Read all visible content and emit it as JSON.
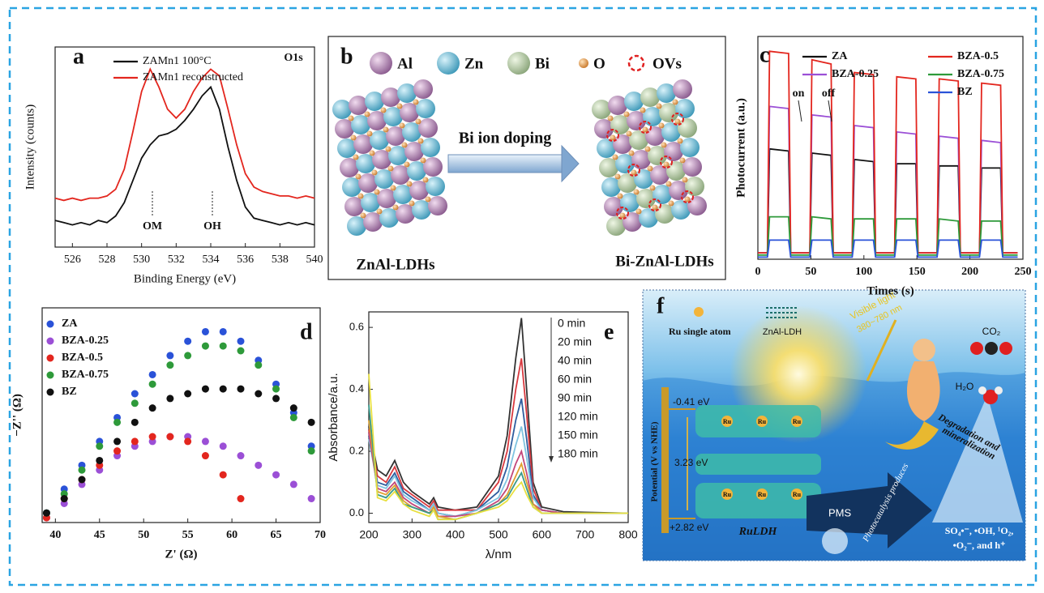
{
  "chart_data": [
    {
      "type": "line",
      "label": "a",
      "x_label": "Binding Energy (eV)",
      "y_label": "Intensity (counts)",
      "annotations": [
        "O1s",
        "OM",
        "OH"
      ],
      "legend": "upper left",
      "x": [
        525,
        525.5,
        526,
        526.5,
        527,
        527.5,
        528,
        528.5,
        529,
        529.5,
        530,
        530.5,
        531,
        531.5,
        532,
        532.5,
        533,
        533.5,
        534,
        534.5,
        535,
        535.5,
        536,
        536.5,
        537,
        537.5,
        538,
        538.5,
        539,
        539.5,
        540
      ],
      "xlim": [
        525,
        540
      ],
      "xticks": [
        526,
        528,
        530,
        532,
        534,
        536,
        538,
        540
      ],
      "ylim": [
        0,
        90
      ],
      "series": [
        {
          "name": "ZAMn1 100°C",
          "color": "#111111",
          "values": [
            12,
            11,
            10,
            11,
            10,
            12,
            11,
            14,
            20,
            30,
            40,
            46,
            50,
            51,
            53,
            57,
            62,
            68,
            72,
            62,
            45,
            30,
            18,
            13,
            12,
            11,
            10,
            11,
            10,
            11,
            10
          ]
        },
        {
          "name": "ZAMn1 reconstructed",
          "color": "#e3261e",
          "values": [
            22,
            21,
            22,
            21,
            22,
            22,
            23,
            26,
            35,
            52,
            70,
            80,
            72,
            62,
            58,
            62,
            70,
            76,
            80,
            77,
            62,
            46,
            33,
            27,
            25,
            24,
            23,
            23,
            22,
            23,
            22
          ]
        }
      ]
    },
    {
      "type": "line",
      "label": "c",
      "x_label": "Times (s)",
      "y_label": "Photocurrent (a.u.)",
      "annotations": [
        "on",
        "off"
      ],
      "legend": "upper center",
      "x": [
        0,
        9,
        11,
        29,
        31,
        49,
        51,
        69,
        71,
        89,
        91,
        109,
        111,
        129,
        131,
        149,
        151,
        169,
        171,
        189,
        191,
        209,
        211,
        229,
        231,
        245
      ],
      "xlim": [
        0,
        250
      ],
      "xticks": [
        0,
        50,
        100,
        150,
        200,
        250
      ],
      "ylim": [
        0,
        105
      ],
      "series": [
        {
          "name": "ZA",
          "color": "#111111",
          "values": [
            3,
            3,
            52,
            51,
            3,
            3,
            50,
            49,
            3,
            3,
            47,
            46,
            3,
            3,
            45,
            45,
            3,
            3,
            44,
            44,
            3,
            3,
            43,
            43,
            3,
            3
          ]
        },
        {
          "name": "BZA-0.25",
          "color": "#9b4fd6",
          "values": [
            3,
            3,
            72,
            71,
            3,
            3,
            68,
            67,
            3,
            3,
            63,
            62,
            3,
            3,
            60,
            59,
            3,
            3,
            58,
            57,
            3,
            3,
            56,
            55,
            3,
            3
          ]
        },
        {
          "name": "BZA-0.5",
          "color": "#e3261e",
          "values": [
            3,
            3,
            98,
            97,
            3,
            3,
            94,
            92,
            3,
            3,
            88,
            87,
            3,
            3,
            86,
            85,
            3,
            3,
            85,
            84,
            3,
            3,
            83,
            82,
            3,
            3
          ]
        },
        {
          "name": "BZA-0.75",
          "color": "#2e9a3a",
          "values": [
            2,
            2,
            20,
            20,
            2,
            2,
            20,
            19,
            2,
            2,
            19,
            19,
            2,
            2,
            19,
            19,
            2,
            2,
            19,
            18,
            2,
            2,
            18,
            18,
            2,
            2
          ]
        },
        {
          "name": "BZ",
          "color": "#2a52d8",
          "values": [
            1,
            1,
            9,
            9,
            1,
            1,
            9,
            9,
            1,
            1,
            9,
            9,
            1,
            1,
            9,
            9,
            1,
            1,
            9,
            9,
            1,
            1,
            9,
            9,
            1,
            1
          ]
        }
      ]
    },
    {
      "type": "scatter",
      "label": "d",
      "x_label": "Z' (Ω)",
      "y_label": "−Z'' (Ω)",
      "legend": "upper left",
      "xlim": [
        38.5,
        70
      ],
      "xticks": [
        40,
        45,
        50,
        55,
        60,
        65,
        70
      ],
      "ylim": [
        0,
        45
      ],
      "series": [
        {
          "name": "ZA",
          "color": "#2a52d8",
          "x": [
            39,
            41,
            43,
            45,
            47,
            49,
            51,
            53,
            55,
            57,
            59,
            61,
            63,
            65,
            67,
            69
          ],
          "values": [
            2,
            7,
            12,
            17,
            22,
            27,
            31,
            35,
            38,
            40,
            40,
            38,
            34,
            29,
            23,
            16
          ]
        },
        {
          "name": "BZA-0.25",
          "color": "#9b4fd6",
          "x": [
            39,
            41,
            43,
            45,
            47,
            49,
            51,
            53,
            55,
            57,
            59,
            61,
            63,
            65,
            67,
            69
          ],
          "values": [
            1,
            4,
            8,
            11,
            14,
            16,
            17,
            18,
            18,
            17,
            16,
            14,
            12,
            10,
            8,
            5
          ]
        },
        {
          "name": "BZA-0.5",
          "color": "#e3261e",
          "x": [
            39,
            41,
            43,
            45,
            47,
            49,
            51,
            53,
            55,
            57,
            59,
            61
          ],
          "values": [
            1,
            5,
            9,
            12,
            15,
            17,
            18,
            18,
            17,
            14,
            10,
            5
          ]
        },
        {
          "name": "BZA-0.75",
          "color": "#2e9a3a",
          "x": [
            39,
            41,
            43,
            45,
            47,
            49,
            51,
            53,
            55,
            57,
            59,
            61,
            63,
            65,
            67,
            69
          ],
          "values": [
            2,
            6,
            11,
            16,
            21,
            25,
            29,
            33,
            35,
            37,
            37,
            36,
            33,
            28,
            22,
            15
          ]
        },
        {
          "name": "BZ",
          "color": "#111111",
          "x": [
            39,
            41,
            43,
            45,
            47,
            49,
            51,
            53,
            55,
            57,
            59,
            61,
            63,
            65,
            67,
            69
          ],
          "values": [
            2,
            5,
            9,
            13,
            17,
            21,
            24,
            26,
            27,
            28,
            28,
            28,
            27,
            26,
            24,
            21
          ]
        }
      ]
    },
    {
      "type": "line",
      "label": "e",
      "x_label": "λ/nm",
      "y_label": "Absorbance/a.u.",
      "legend": "upper right",
      "x": [
        200,
        220,
        240,
        260,
        280,
        300,
        340,
        350,
        360,
        400,
        450,
        500,
        520,
        540,
        553,
        565,
        580,
        600,
        650,
        700,
        800
      ],
      "xlim": [
        200,
        800
      ],
      "xticks": [
        200,
        300,
        400,
        500,
        600,
        700,
        800
      ],
      "ylim": [
        -0.03,
        0.65
      ],
      "yticks": [
        {
          "value": 0,
          "label": "0.0"
        },
        0.2,
        0.4,
        0.6
      ],
      "series": [
        {
          "name": "0 min",
          "color": "#333333",
          "values": [
            0.28,
            0.14,
            0.12,
            0.17,
            0.1,
            0.07,
            0.03,
            0.05,
            0.02,
            0.01,
            0.02,
            0.12,
            0.25,
            0.5,
            0.63,
            0.4,
            0.1,
            0.02,
            0.005,
            0.003,
            0
          ]
        },
        {
          "name": "20 min",
          "color": "#d9393f",
          "values": [
            0.27,
            0.12,
            0.1,
            0.15,
            0.08,
            0.06,
            0.02,
            0.04,
            0.01,
            0.01,
            0.01,
            0.1,
            0.2,
            0.4,
            0.5,
            0.32,
            0.08,
            0.01,
            0,
            0,
            0
          ]
        },
        {
          "name": "40 min",
          "color": "#2f5d9e",
          "values": [
            0.25,
            0.1,
            0.09,
            0.13,
            0.07,
            0.05,
            0.01,
            0.03,
            0,
            -0.01,
            0.01,
            0.07,
            0.15,
            0.3,
            0.37,
            0.24,
            0.06,
            0.01,
            0,
            0,
            0
          ]
        },
        {
          "name": "60 min",
          "color": "#7fc3e0",
          "values": [
            0.24,
            0.09,
            0.08,
            0.12,
            0.06,
            0.04,
            0.01,
            0.03,
            0,
            -0.01,
            0.01,
            0.05,
            0.11,
            0.22,
            0.28,
            0.18,
            0.05,
            0.01,
            0,
            0,
            0
          ]
        },
        {
          "name": "90 min",
          "color": "#c2477a",
          "values": [
            0.26,
            0.08,
            0.07,
            0.1,
            0.05,
            0.03,
            0,
            0.02,
            -0.01,
            -0.01,
            0,
            0.04,
            0.08,
            0.16,
            0.2,
            0.13,
            0.03,
            0.01,
            0,
            0,
            0
          ]
        },
        {
          "name": "120 min",
          "color": "#e0a030",
          "values": [
            0.3,
            0.07,
            0.06,
            0.09,
            0.04,
            0.02,
            0,
            0.02,
            -0.01,
            -0.02,
            0,
            0.03,
            0.06,
            0.12,
            0.16,
            0.1,
            0.03,
            0,
            0,
            0,
            0
          ]
        },
        {
          "name": "150 min",
          "color": "#3a9a8a",
          "values": [
            0.35,
            0.06,
            0.05,
            0.08,
            0.03,
            0.02,
            0,
            0.01,
            -0.02,
            -0.02,
            0,
            0.03,
            0.05,
            0.1,
            0.13,
            0.08,
            0.02,
            0,
            0,
            0,
            0
          ]
        },
        {
          "name": "180 min",
          "color": "#e8e040",
          "values": [
            0.45,
            0.05,
            0.04,
            0.07,
            0.03,
            0.01,
            -0.01,
            0.01,
            -0.02,
            -0.02,
            0,
            0.02,
            0.04,
            0.08,
            0.1,
            0.06,
            0.02,
            0,
            0,
            0,
            0
          ]
        }
      ]
    }
  ],
  "panel_b": {
    "label": "b",
    "legend": [
      "Al",
      "Zn",
      "Bi",
      "O",
      "OVs"
    ],
    "arrow_text": "Bi ion doping",
    "left": "ZnAl-LDHs",
    "right": "Bi-ZnAl-LDHs"
  },
  "panel_f": {
    "label": "f",
    "ru_single_atom": "Ru single atom",
    "ldh_icon": "ZnAl-LDH",
    "light": "Visible light",
    "wavelength": "380~780 nm",
    "co2": "CO₂",
    "h2o": "H₂O",
    "cb": "-0.41 eV",
    "gap": "3.23 eV",
    "vb": "+2.82 eV",
    "potential": "Potential (V vs NHE)",
    "degradation": [
      "Degradation and",
      "mineralization"
    ],
    "pms": "PMS",
    "produces": "Photocatalysis produces",
    "species": [
      "SO₄•⁻, •OH, ¹O₂,",
      "•O₂⁻, and h⁺"
    ],
    "catalyst": "RuLDH",
    "ru_labels": [
      "Ru",
      "Ru",
      "Ru",
      "Ru",
      "Ru",
      "Ru"
    ]
  }
}
